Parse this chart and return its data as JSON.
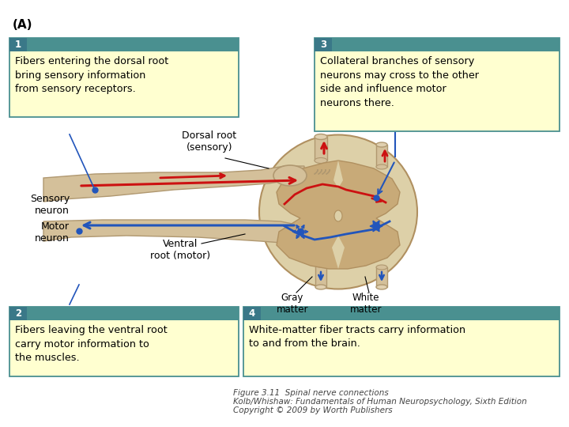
{
  "title": "Figure 3.11  Spinal nerve connections",
  "subtitle1": "Kolb/Whishaw: Fundamentals of Human Neuropsychology, Sixth Edition",
  "subtitle2": "Copyright © 2009 by Worth Publishers",
  "label_A": "(A)",
  "box1_num": "1",
  "box1_text": "Fibers entering the dorsal root\nbring sensory information\nfrom sensory receptors.",
  "box2_num": "2",
  "box2_text": "Fibers leaving the ventral root\ncarry motor information to\nthe muscles.",
  "box3_num": "3",
  "box3_text": "Collateral branches of sensory\nneurons may cross to the other\nside and influence motor\nneurons there.",
  "box4_num": "4",
  "box4_text": "White-matter fiber tracts carry information\nto and from the brain.",
  "label_dorsal_root": "Dorsal root\n(sensory)",
  "label_sensory_neuron": "Sensory\nneuron",
  "label_motor_neuron": "Motor\nneuron",
  "label_ventral_root": "Ventral\nroot (motor)",
  "label_gray_matter": "Gray\nmatter",
  "label_white_matter": "White\nmatter",
  "bg_color": "#ffffff",
  "box_bg": "#ffffd0",
  "box_border_teal": "#4a9090",
  "box_num_bg": "#3a7888",
  "sensory_color": "#cc1111",
  "motor_color": "#2255bb",
  "nerve_color": "#d4c09a",
  "nerve_edge": "#b09870",
  "cord_white": "#ddd0a8",
  "cord_gray": "#c8aa78",
  "cord_edge": "#b09060",
  "caption_color": "#444444"
}
